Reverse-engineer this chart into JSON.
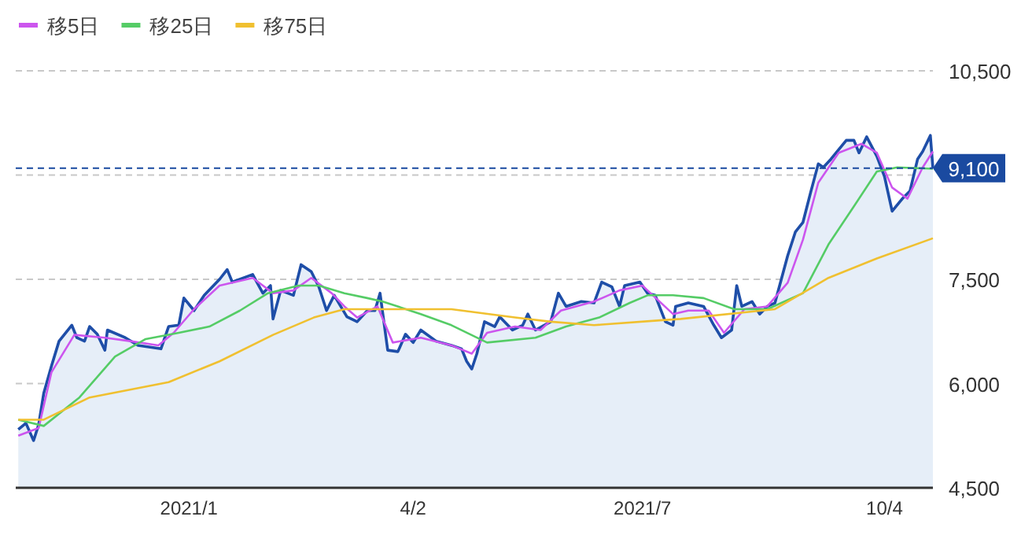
{
  "chart_data": {
    "type": "line",
    "grid": "y",
    "legend": "top left",
    "xlim": [
      "2020-10-28",
      "2021-10-23"
    ],
    "ylim": [
      4500,
      10500
    ],
    "xticks": [
      {
        "value": "2021-01-04",
        "label": "2021/1"
      },
      {
        "value": "2021-04-02",
        "label": "4/2"
      },
      {
        "value": "2021-07-01",
        "label": "2021/7"
      },
      {
        "value": "2021-10-04",
        "label": "10/4"
      }
    ],
    "yticks": [
      {
        "value": 4500,
        "label": "4,500"
      },
      {
        "value": 6000,
        "label": "6,000"
      },
      {
        "value": 7500,
        "label": "7,500"
      },
      {
        "value": 9000,
        "label": null
      },
      {
        "value": 10500,
        "label": "10,500"
      }
    ],
    "ref_lines": [
      {
        "axis": "y",
        "value": 9100,
        "label": "9,100",
        "color": "#1a4aa0",
        "line_style": "dashed"
      }
    ],
    "series": [
      {
        "type": "area",
        "color": "#1e4ea8",
        "x": [
          "2020-10-29",
          "2020-11-01",
          "2020-11-04",
          "2020-11-06",
          "2020-11-08",
          "2020-11-11",
          "2020-11-14",
          "2020-11-19",
          "2020-11-21",
          "2020-11-24",
          "2020-11-26",
          "2020-11-29",
          "2020-12-02",
          "2020-12-03",
          "2020-12-10",
          "2020-12-15",
          "2020-12-24",
          "2020-12-27",
          "2020-12-31",
          "2021-01-02",
          "2021-01-06",
          "2021-01-10",
          "2021-01-16",
          "2021-01-19",
          "2021-01-21",
          "2021-01-29",
          "2021-02-02",
          "2021-02-05",
          "2021-02-06",
          "2021-02-09",
          "2021-02-14",
          "2021-02-17",
          "2021-02-21",
          "2021-02-24",
          "2021-02-27",
          "2021-03-02",
          "2021-03-07",
          "2021-03-11",
          "2021-03-15",
          "2021-03-18",
          "2021-03-20",
          "2021-03-23",
          "2021-03-27",
          "2021-03-30",
          "2021-04-02",
          "2021-04-05",
          "2021-04-11",
          "2021-04-17",
          "2021-04-21",
          "2021-04-23",
          "2021-04-25",
          "2021-04-27",
          "2021-04-30",
          "2021-05-04",
          "2021-05-06",
          "2021-05-11",
          "2021-05-15",
          "2021-05-17",
          "2021-05-20",
          "2021-05-26",
          "2021-05-29",
          "2021-06-01",
          "2021-06-07",
          "2021-06-12",
          "2021-06-15",
          "2021-06-19",
          "2021-06-22",
          "2021-06-24",
          "2021-06-30",
          "2021-07-03",
          "2021-07-06",
          "2021-07-10",
          "2021-07-13",
          "2021-07-14",
          "2021-07-19",
          "2021-07-25",
          "2021-07-29",
          "2021-08-01",
          "2021-08-05",
          "2021-08-07",
          "2021-08-09",
          "2021-08-13",
          "2021-08-16",
          "2021-08-19",
          "2021-08-22",
          "2021-08-27",
          "2021-08-30",
          "2021-09-02",
          "2021-09-05",
          "2021-09-08",
          "2021-09-10",
          "2021-09-13",
          "2021-09-19",
          "2021-09-22",
          "2021-09-24",
          "2021-09-27",
          "2021-10-01",
          "2021-10-04",
          "2021-10-07",
          "2021-10-11",
          "2021-10-14",
          "2021-10-17",
          "2021-10-19",
          "2021-10-22",
          "2021-10-23"
        ],
        "values": [
          5340,
          5430,
          5180,
          5410,
          5860,
          6250,
          6610,
          6840,
          6660,
          6610,
          6820,
          6710,
          6480,
          6770,
          6660,
          6550,
          6500,
          6820,
          6840,
          7230,
          7050,
          7270,
          7500,
          7640,
          7460,
          7570,
          7300,
          7410,
          6930,
          7340,
          7270,
          7710,
          7610,
          7390,
          7050,
          7270,
          6960,
          6890,
          7050,
          7050,
          7300,
          6480,
          6460,
          6710,
          6590,
          6770,
          6610,
          6550,
          6500,
          6320,
          6210,
          6430,
          6890,
          6820,
          6960,
          6770,
          6840,
          7000,
          6770,
          6890,
          7300,
          7110,
          7180,
          7160,
          7460,
          7390,
          7110,
          7410,
          7460,
          7300,
          7270,
          6890,
          6840,
          7110,
          7160,
          7110,
          6840,
          6660,
          6770,
          7410,
          7110,
          7180,
          7000,
          7110,
          7160,
          7840,
          8180,
          8320,
          8750,
          9160,
          9110,
          9230,
          9500,
          9500,
          9320,
          9550,
          9270,
          8980,
          8480,
          8660,
          8770,
          9230,
          9340,
          9570,
          9100
        ]
      },
      {
        "type": "line",
        "name": "移5日",
        "color": "#cc55ee",
        "x": [
          "2020-10-29",
          "2020-11-06",
          "2020-11-11",
          "2020-11-20",
          "2020-12-02",
          "2020-12-12",
          "2020-12-23",
          "2020-12-29",
          "2021-01-06",
          "2021-01-16",
          "2021-01-29",
          "2021-02-06",
          "2021-02-14",
          "2021-02-21",
          "2021-03-01",
          "2021-03-06",
          "2021-03-11",
          "2021-03-19",
          "2021-03-25",
          "2021-04-05",
          "2021-04-17",
          "2021-04-25",
          "2021-05-01",
          "2021-05-12",
          "2021-05-22",
          "2021-05-30",
          "2021-06-12",
          "2021-06-22",
          "2021-07-01",
          "2021-07-03",
          "2021-07-13",
          "2021-07-19",
          "2021-07-27",
          "2021-08-02",
          "2021-08-10",
          "2021-08-19",
          "2021-08-27",
          "2021-09-02",
          "2021-09-08",
          "2021-09-16",
          "2021-09-25",
          "2021-10-01",
          "2021-10-07",
          "2021-10-13",
          "2021-10-19",
          "2021-10-23"
        ],
        "values": [
          5250,
          5360,
          6160,
          6700,
          6660,
          6610,
          6550,
          6730,
          7070,
          7410,
          7520,
          7300,
          7340,
          7520,
          7300,
          7110,
          6950,
          7110,
          6590,
          6660,
          6550,
          6430,
          6730,
          6820,
          6770,
          7050,
          7180,
          7340,
          7410,
          7340,
          7000,
          7050,
          7050,
          6730,
          7070,
          7110,
          7450,
          8070,
          8890,
          9320,
          9450,
          9320,
          8820,
          8660,
          9110,
          9340
        ]
      },
      {
        "type": "line",
        "name": "移25日",
        "color": "#55cc66",
        "x": [
          "2020-10-29",
          "2020-11-08",
          "2020-11-22",
          "2020-12-06",
          "2020-12-18",
          "2020-12-31",
          "2021-01-12",
          "2021-01-24",
          "2021-02-04",
          "2021-02-16",
          "2021-02-24",
          "2021-03-06",
          "2021-03-15",
          "2021-03-21",
          "2021-04-05",
          "2021-04-17",
          "2021-05-01",
          "2021-05-20",
          "2021-06-01",
          "2021-06-14",
          "2021-06-26",
          "2021-07-03",
          "2021-07-13",
          "2021-07-25",
          "2021-08-06",
          "2021-08-19",
          "2021-09-02",
          "2021-09-12",
          "2021-09-22",
          "2021-10-01",
          "2021-10-09",
          "2021-10-23"
        ],
        "values": [
          5480,
          5390,
          5800,
          6390,
          6640,
          6730,
          6820,
          7050,
          7300,
          7410,
          7410,
          7300,
          7230,
          7180,
          7000,
          6840,
          6590,
          6660,
          6820,
          6950,
          7160,
          7270,
          7270,
          7230,
          7070,
          7070,
          7300,
          8000,
          8550,
          9050,
          9110,
          9090
        ]
      },
      {
        "type": "line",
        "name": "移75日",
        "color": "#f0c030",
        "x": [
          "2020-10-29",
          "2020-11-08",
          "2020-11-26",
          "2020-12-27",
          "2021-01-16",
          "2021-02-06",
          "2021-02-22",
          "2021-03-06",
          "2021-04-17",
          "2021-05-12",
          "2021-05-26",
          "2021-06-12",
          "2021-07-08",
          "2021-07-16",
          "2021-08-22",
          "2021-09-12",
          "2021-10-01",
          "2021-10-23"
        ],
        "values": [
          5480,
          5480,
          5800,
          6020,
          6320,
          6700,
          6950,
          7070,
          7070,
          6950,
          6890,
          6840,
          6910,
          6930,
          7070,
          7520,
          7800,
          8090
        ]
      }
    ]
  }
}
